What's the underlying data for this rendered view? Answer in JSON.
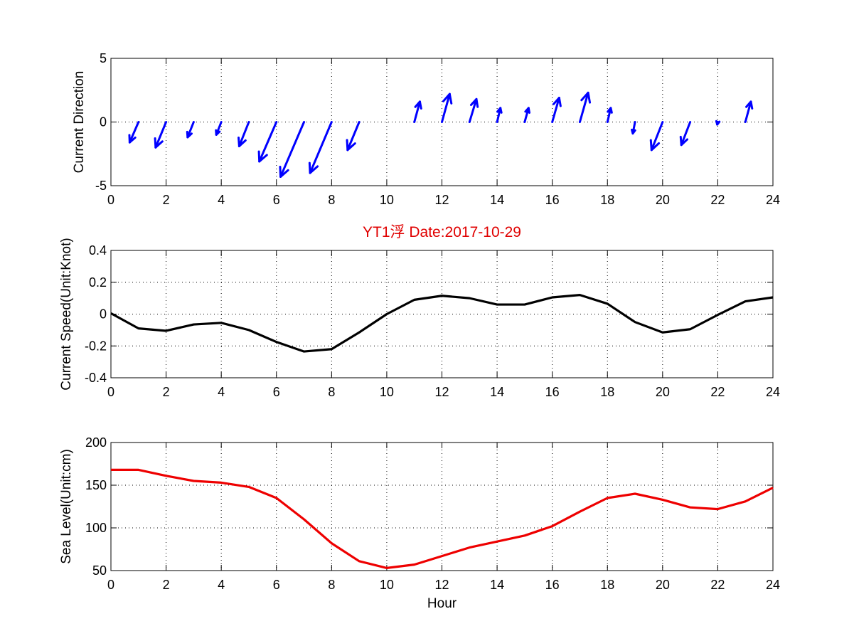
{
  "chart_data": [
    {
      "type": "quiver",
      "id": "direction",
      "ylabel": "Current Direction",
      "xlim": [
        0,
        24
      ],
      "ylim": [
        -5,
        5
      ],
      "xticks": [
        0,
        2,
        4,
        6,
        8,
        10,
        12,
        14,
        16,
        18,
        20,
        22,
        24
      ],
      "yticks": [
        -5,
        0,
        5
      ],
      "grid": true,
      "arrow_color": "#0000ff",
      "arrows": [
        {
          "x": 1,
          "u": -0.32,
          "v": -1.6
        },
        {
          "x": 2,
          "u": -0.38,
          "v": -2.0
        },
        {
          "x": 3,
          "u": -0.22,
          "v": -1.2
        },
        {
          "x": 4,
          "u": -0.18,
          "v": -1.0
        },
        {
          "x": 5,
          "u": -0.35,
          "v": -1.9
        },
        {
          "x": 6,
          "u": -0.62,
          "v": -3.1
        },
        {
          "x": 7,
          "u": -0.85,
          "v": -4.3
        },
        {
          "x": 8,
          "u": -0.78,
          "v": -4.0
        },
        {
          "x": 9,
          "u": -0.42,
          "v": -2.2
        },
        {
          "x": 10,
          "u": 0.0,
          "v": 0.0
        },
        {
          "x": 11,
          "u": 0.2,
          "v": 1.6
        },
        {
          "x": 12,
          "u": 0.28,
          "v": 2.2
        },
        {
          "x": 13,
          "u": 0.25,
          "v": 1.8
        },
        {
          "x": 14,
          "u": 0.12,
          "v": 1.1
        },
        {
          "x": 15,
          "u": 0.14,
          "v": 1.1
        },
        {
          "x": 16,
          "u": 0.25,
          "v": 1.9
        },
        {
          "x": 17,
          "u": 0.3,
          "v": 2.3
        },
        {
          "x": 18,
          "u": 0.12,
          "v": 1.1
        },
        {
          "x": 19,
          "u": -0.08,
          "v": -0.9
        },
        {
          "x": 20,
          "u": -0.4,
          "v": -2.2
        },
        {
          "x": 21,
          "u": -0.32,
          "v": -1.8
        },
        {
          "x": 22,
          "u": -0.02,
          "v": -0.2
        },
        {
          "x": 23,
          "u": 0.2,
          "v": 1.6
        }
      ]
    },
    {
      "type": "line",
      "id": "speed",
      "title": "YT1浮    Date:2017-10-29",
      "ylabel": "Current Speed(Unit:Knot)",
      "xlim": [
        0,
        24
      ],
      "ylim": [
        -0.4,
        0.4
      ],
      "xticks": [
        0,
        2,
        4,
        6,
        8,
        10,
        12,
        14,
        16,
        18,
        20,
        22,
        24
      ],
      "yticks": [
        -0.4,
        -0.2,
        0,
        0.2,
        0.4
      ],
      "ytick_labels": [
        "-0.4",
        "-0.2",
        "0",
        "0.2",
        "0.4"
      ],
      "grid": true,
      "series": [
        {
          "color": "#000000",
          "x": [
            0,
            1,
            2,
            3,
            4,
            5,
            6,
            7,
            8,
            9,
            10,
            11,
            12,
            13,
            14,
            15,
            16,
            17,
            18,
            19,
            20,
            21,
            22,
            23,
            24
          ],
          "values": [
            0.005,
            -0.09,
            -0.105,
            -0.065,
            -0.055,
            -0.1,
            -0.175,
            -0.235,
            -0.22,
            -0.115,
            0.0,
            0.09,
            0.115,
            0.1,
            0.06,
            0.06,
            0.105,
            0.12,
            0.065,
            -0.05,
            -0.115,
            -0.095,
            -0.005,
            0.08,
            0.105
          ]
        }
      ]
    },
    {
      "type": "line",
      "id": "sealevel",
      "xlabel": "Hour",
      "ylabel": "Sea Level(Unit:cm)",
      "xlim": [
        0,
        24
      ],
      "ylim": [
        50,
        200
      ],
      "xticks": [
        0,
        2,
        4,
        6,
        8,
        10,
        12,
        14,
        16,
        18,
        20,
        22,
        24
      ],
      "yticks": [
        50,
        100,
        150,
        200
      ],
      "grid": true,
      "series": [
        {
          "color": "#ee0000",
          "x": [
            0,
            1,
            2,
            3,
            4,
            5,
            6,
            7,
            8,
            9,
            10,
            11,
            12,
            13,
            14,
            15,
            16,
            17,
            18,
            19,
            20,
            21,
            22,
            23,
            24
          ],
          "values": [
            168,
            168,
            161,
            155,
            153,
            148,
            135,
            110,
            82,
            61,
            53,
            57,
            67,
            77,
            84,
            91,
            102,
            119,
            135,
            140,
            133,
            124,
            122,
            131,
            147
          ]
        }
      ]
    }
  ]
}
